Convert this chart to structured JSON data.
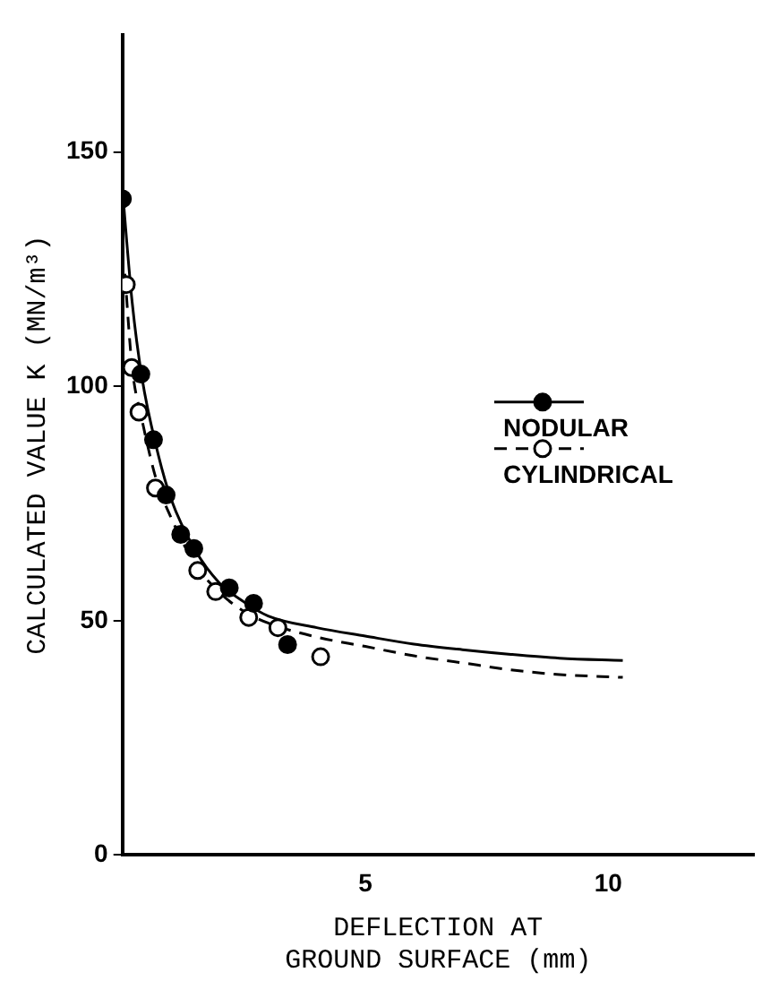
{
  "chart_data": {
    "type": "scatter",
    "xlabel": "DEFLECTION AT\nGROUND SURFACE (mm)",
    "ylabel": "CALCULATED VALUE K (MN/m³)",
    "xlim": [
      0,
      13
    ],
    "xticks": [
      5,
      10
    ],
    "ylim": [
      0,
      175
    ],
    "yticks": [
      0,
      50,
      100,
      150
    ],
    "grid": false,
    "legend": "right",
    "series": [
      {
        "name": "NODULAR",
        "color": "#000000",
        "marker": "circle",
        "line_style": "solid",
        "x": [
          0,
          0.38,
          0.64,
          0.9,
          1.2,
          1.47,
          2.2,
          2.7,
          3.4
        ],
        "values": [
          140,
          102.6,
          88.6,
          76.8,
          68.4,
          65.4,
          57,
          53.7,
          44.9
        ]
      },
      {
        "type": "line",
        "color": "#000000",
        "marker": "none",
        "line_style": "solid",
        "x": [
          0,
          0.2,
          0.4,
          0.7,
          1,
          1.5,
          2,
          2.5,
          3,
          4,
          5,
          6,
          7,
          8,
          9,
          10.3
        ],
        "values": [
          142,
          118,
          102,
          87,
          76,
          65,
          58,
          54,
          51,
          48.5,
          46.7,
          45,
          43.8,
          42.8,
          42,
          41.5
        ]
      },
      {
        "name": "CYLINDRICAL",
        "color": "#ffffff",
        "marker": "circle",
        "line_style": "dashed",
        "x": [
          0.08,
          0.19,
          0.34,
          0.68,
          1.55,
          1.92,
          2.6,
          3.2,
          4.08
        ],
        "values": [
          121.7,
          104,
          94.5,
          78.3,
          60.7,
          56.2,
          50.7,
          48.5,
          42.3
        ]
      },
      {
        "type": "line",
        "color": "#000000",
        "marker": "none",
        "line_style": "dashed",
        "x": [
          0.05,
          0.2,
          0.4,
          0.7,
          1,
          1.5,
          2,
          2.5,
          3,
          4,
          5,
          6,
          7,
          8,
          9,
          10.3
        ],
        "values": [
          124,
          104,
          93,
          80,
          72,
          62,
          56,
          52,
          49.5,
          46.5,
          44.5,
          42.5,
          41,
          39.5,
          38.5,
          37.9
        ]
      }
    ]
  }
}
